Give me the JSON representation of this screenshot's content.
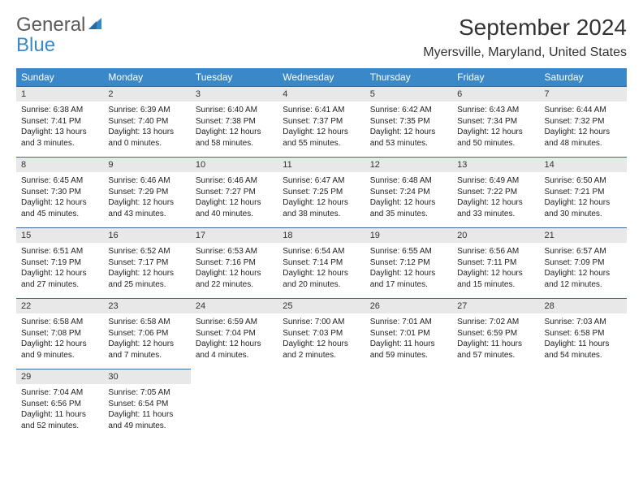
{
  "logo": {
    "text1": "General",
    "text2": "Blue"
  },
  "title": "September 2024",
  "location": "Myersville, Maryland, United States",
  "colors": {
    "header_bg": "#3a88c8",
    "header_text": "#ffffff",
    "daynum_bg": "#e8e8e8",
    "border": "#3a6a9a",
    "logo_gray": "#5a5a5a",
    "logo_blue": "#3a88c8"
  },
  "weekdays": [
    "Sunday",
    "Monday",
    "Tuesday",
    "Wednesday",
    "Thursday",
    "Friday",
    "Saturday"
  ],
  "weeks": [
    {
      "nums": [
        "1",
        "2",
        "3",
        "4",
        "5",
        "6",
        "7"
      ],
      "cells": [
        {
          "sunrise": "Sunrise: 6:38 AM",
          "sunset": "Sunset: 7:41 PM",
          "day1": "Daylight: 13 hours",
          "day2": "and 3 minutes."
        },
        {
          "sunrise": "Sunrise: 6:39 AM",
          "sunset": "Sunset: 7:40 PM",
          "day1": "Daylight: 13 hours",
          "day2": "and 0 minutes."
        },
        {
          "sunrise": "Sunrise: 6:40 AM",
          "sunset": "Sunset: 7:38 PM",
          "day1": "Daylight: 12 hours",
          "day2": "and 58 minutes."
        },
        {
          "sunrise": "Sunrise: 6:41 AM",
          "sunset": "Sunset: 7:37 PM",
          "day1": "Daylight: 12 hours",
          "day2": "and 55 minutes."
        },
        {
          "sunrise": "Sunrise: 6:42 AM",
          "sunset": "Sunset: 7:35 PM",
          "day1": "Daylight: 12 hours",
          "day2": "and 53 minutes."
        },
        {
          "sunrise": "Sunrise: 6:43 AM",
          "sunset": "Sunset: 7:34 PM",
          "day1": "Daylight: 12 hours",
          "day2": "and 50 minutes."
        },
        {
          "sunrise": "Sunrise: 6:44 AM",
          "sunset": "Sunset: 7:32 PM",
          "day1": "Daylight: 12 hours",
          "day2": "and 48 minutes."
        }
      ]
    },
    {
      "nums": [
        "8",
        "9",
        "10",
        "11",
        "12",
        "13",
        "14"
      ],
      "cells": [
        {
          "sunrise": "Sunrise: 6:45 AM",
          "sunset": "Sunset: 7:30 PM",
          "day1": "Daylight: 12 hours",
          "day2": "and 45 minutes."
        },
        {
          "sunrise": "Sunrise: 6:46 AM",
          "sunset": "Sunset: 7:29 PM",
          "day1": "Daylight: 12 hours",
          "day2": "and 43 minutes."
        },
        {
          "sunrise": "Sunrise: 6:46 AM",
          "sunset": "Sunset: 7:27 PM",
          "day1": "Daylight: 12 hours",
          "day2": "and 40 minutes."
        },
        {
          "sunrise": "Sunrise: 6:47 AM",
          "sunset": "Sunset: 7:25 PM",
          "day1": "Daylight: 12 hours",
          "day2": "and 38 minutes."
        },
        {
          "sunrise": "Sunrise: 6:48 AM",
          "sunset": "Sunset: 7:24 PM",
          "day1": "Daylight: 12 hours",
          "day2": "and 35 minutes."
        },
        {
          "sunrise": "Sunrise: 6:49 AM",
          "sunset": "Sunset: 7:22 PM",
          "day1": "Daylight: 12 hours",
          "day2": "and 33 minutes."
        },
        {
          "sunrise": "Sunrise: 6:50 AM",
          "sunset": "Sunset: 7:21 PM",
          "day1": "Daylight: 12 hours",
          "day2": "and 30 minutes."
        }
      ]
    },
    {
      "nums": [
        "15",
        "16",
        "17",
        "18",
        "19",
        "20",
        "21"
      ],
      "cells": [
        {
          "sunrise": "Sunrise: 6:51 AM",
          "sunset": "Sunset: 7:19 PM",
          "day1": "Daylight: 12 hours",
          "day2": "and 27 minutes."
        },
        {
          "sunrise": "Sunrise: 6:52 AM",
          "sunset": "Sunset: 7:17 PM",
          "day1": "Daylight: 12 hours",
          "day2": "and 25 minutes."
        },
        {
          "sunrise": "Sunrise: 6:53 AM",
          "sunset": "Sunset: 7:16 PM",
          "day1": "Daylight: 12 hours",
          "day2": "and 22 minutes."
        },
        {
          "sunrise": "Sunrise: 6:54 AM",
          "sunset": "Sunset: 7:14 PM",
          "day1": "Daylight: 12 hours",
          "day2": "and 20 minutes."
        },
        {
          "sunrise": "Sunrise: 6:55 AM",
          "sunset": "Sunset: 7:12 PM",
          "day1": "Daylight: 12 hours",
          "day2": "and 17 minutes."
        },
        {
          "sunrise": "Sunrise: 6:56 AM",
          "sunset": "Sunset: 7:11 PM",
          "day1": "Daylight: 12 hours",
          "day2": "and 15 minutes."
        },
        {
          "sunrise": "Sunrise: 6:57 AM",
          "sunset": "Sunset: 7:09 PM",
          "day1": "Daylight: 12 hours",
          "day2": "and 12 minutes."
        }
      ]
    },
    {
      "nums": [
        "22",
        "23",
        "24",
        "25",
        "26",
        "27",
        "28"
      ],
      "cells": [
        {
          "sunrise": "Sunrise: 6:58 AM",
          "sunset": "Sunset: 7:08 PM",
          "day1": "Daylight: 12 hours",
          "day2": "and 9 minutes."
        },
        {
          "sunrise": "Sunrise: 6:58 AM",
          "sunset": "Sunset: 7:06 PM",
          "day1": "Daylight: 12 hours",
          "day2": "and 7 minutes."
        },
        {
          "sunrise": "Sunrise: 6:59 AM",
          "sunset": "Sunset: 7:04 PM",
          "day1": "Daylight: 12 hours",
          "day2": "and 4 minutes."
        },
        {
          "sunrise": "Sunrise: 7:00 AM",
          "sunset": "Sunset: 7:03 PM",
          "day1": "Daylight: 12 hours",
          "day2": "and 2 minutes."
        },
        {
          "sunrise": "Sunrise: 7:01 AM",
          "sunset": "Sunset: 7:01 PM",
          "day1": "Daylight: 11 hours",
          "day2": "and 59 minutes."
        },
        {
          "sunrise": "Sunrise: 7:02 AM",
          "sunset": "Sunset: 6:59 PM",
          "day1": "Daylight: 11 hours",
          "day2": "and 57 minutes."
        },
        {
          "sunrise": "Sunrise: 7:03 AM",
          "sunset": "Sunset: 6:58 PM",
          "day1": "Daylight: 11 hours",
          "day2": "and 54 minutes."
        }
      ]
    },
    {
      "nums": [
        "29",
        "30",
        "",
        "",
        "",
        "",
        ""
      ],
      "cells": [
        {
          "sunrise": "Sunrise: 7:04 AM",
          "sunset": "Sunset: 6:56 PM",
          "day1": "Daylight: 11 hours",
          "day2": "and 52 minutes."
        },
        {
          "sunrise": "Sunrise: 7:05 AM",
          "sunset": "Sunset: 6:54 PM",
          "day1": "Daylight: 11 hours",
          "day2": "and 49 minutes."
        },
        null,
        null,
        null,
        null,
        null
      ]
    }
  ]
}
